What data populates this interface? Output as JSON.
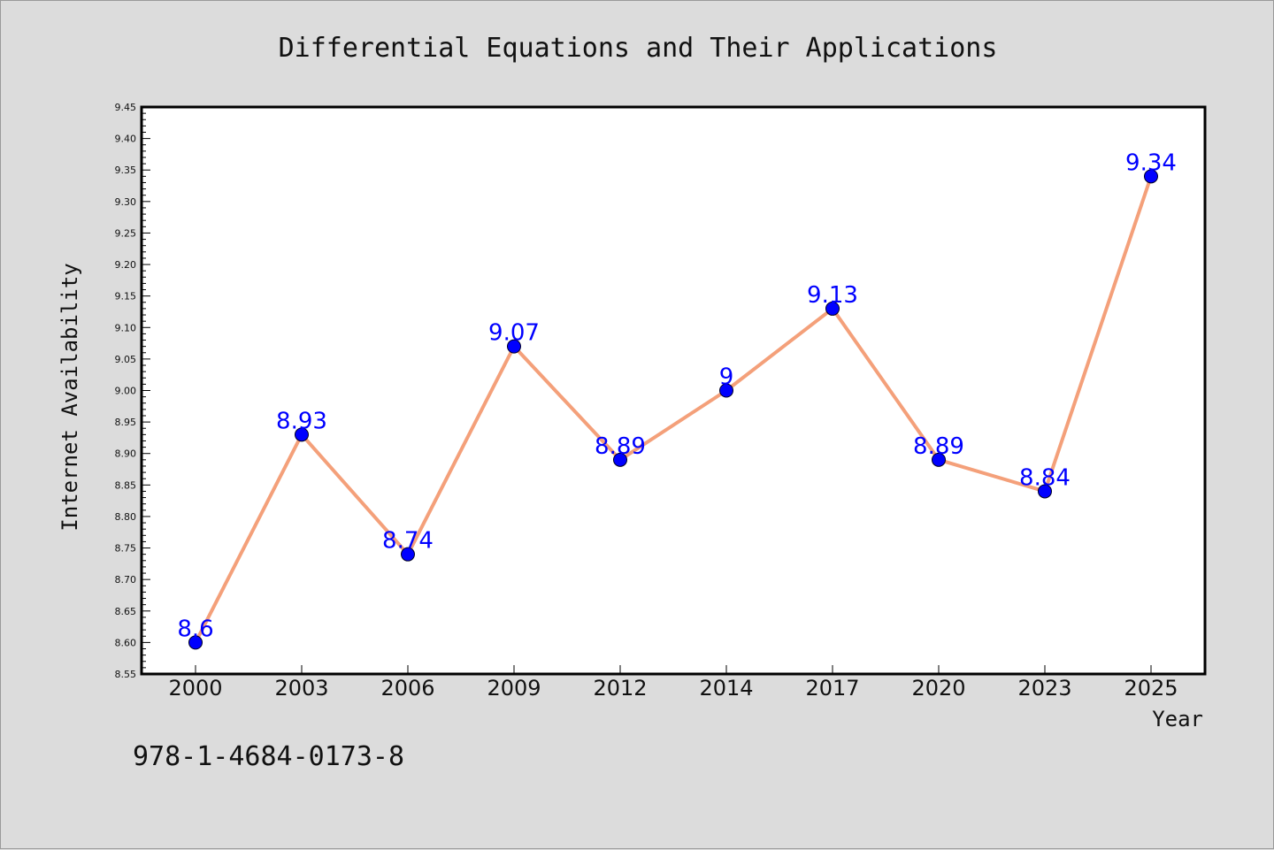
{
  "chart_data": {
    "type": "line",
    "title": "Differential Equations and Their Applications",
    "xlabel": "Year",
    "ylabel": "Internet Availability",
    "categories": [
      "2000",
      "2003",
      "2006",
      "2009",
      "2012",
      "2014",
      "2017",
      "2020",
      "2023",
      "2025"
    ],
    "series": [
      {
        "values": [
          8.6,
          8.93,
          8.74,
          9.07,
          8.89,
          9.0,
          9.13,
          8.89,
          8.84,
          9.34
        ],
        "labels": [
          "8.6",
          "8.93",
          "8.74",
          "9.07",
          "8.89",
          "9",
          "9.13",
          "8.89",
          "8.84",
          "9.34"
        ]
      }
    ],
    "ylim": [
      8.55,
      9.45
    ],
    "yticks": [
      "8.55",
      "8.60",
      "8.65",
      "8.70",
      "8.75",
      "8.80",
      "8.85",
      "8.90",
      "8.95",
      "9.00",
      "9.05",
      "9.10",
      "9.15",
      "9.20",
      "9.25",
      "9.30",
      "9.35",
      "9.40",
      "9.45"
    ],
    "grid": false,
    "colors": {
      "line": "#f4a07a",
      "marker": "#0000ff",
      "data_label": "#0000ff",
      "background": "#dcdcdc",
      "plot_area": "#ffffff"
    }
  },
  "footer": {
    "isbn": "978-1-4684-0173-8"
  }
}
